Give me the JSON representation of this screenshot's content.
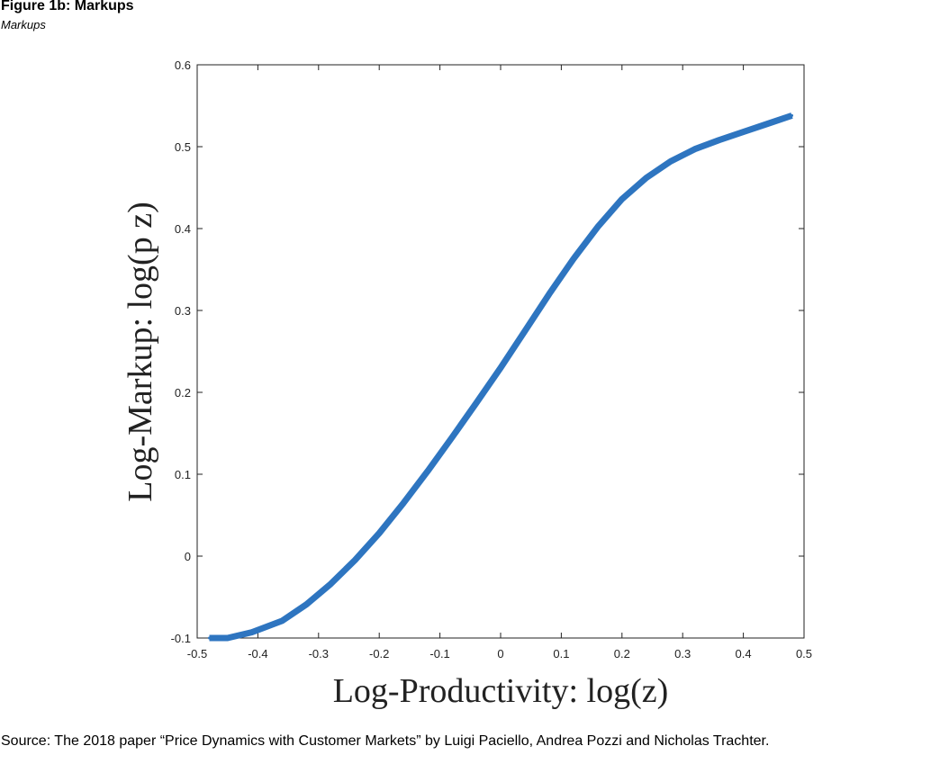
{
  "figure": {
    "title": "Figure 1b: Markups",
    "subtitle": "Markups",
    "source": "Source: The 2018 paper “Price Dynamics with Customer Markets” by Luigi Paciello, Andrea Pozzi and Nicholas Trachter."
  },
  "chart_data": {
    "type": "line",
    "xlabel": "Log-Productivity:  log(z)",
    "ylabel": "Log-Markup:  log(p z)",
    "xlim": [
      -0.5,
      0.5
    ],
    "ylim": [
      -0.1,
      0.6
    ],
    "xticks": [
      "-0.5",
      "-0.4",
      "-0.3",
      "-0.2",
      "-0.1",
      "0",
      "0.1",
      "0.2",
      "0.3",
      "0.4",
      "0.5"
    ],
    "yticks": [
      "-0.1",
      "0",
      "0.1",
      "0.2",
      "0.3",
      "0.4",
      "0.5",
      "0.6"
    ],
    "grid": false,
    "line_color": "#2e75c0",
    "series": [
      {
        "x": [
          -0.48,
          -0.45,
          -0.41,
          -0.36,
          -0.32,
          -0.28,
          -0.24,
          -0.2,
          -0.16,
          -0.12,
          -0.08,
          -0.04,
          0.0,
          0.04,
          0.08,
          0.12,
          0.16,
          0.2,
          0.24,
          0.28,
          0.32,
          0.36,
          0.4,
          0.44,
          0.48
        ],
        "y": [
          -0.1,
          -0.1,
          -0.093,
          -0.079,
          -0.059,
          -0.034,
          -0.005,
          0.028,
          0.065,
          0.104,
          0.145,
          0.187,
          0.23,
          0.275,
          0.32,
          0.363,
          0.402,
          0.436,
          0.462,
          0.482,
          0.497,
          0.508,
          0.518,
          0.528,
          0.538
        ]
      }
    ]
  }
}
